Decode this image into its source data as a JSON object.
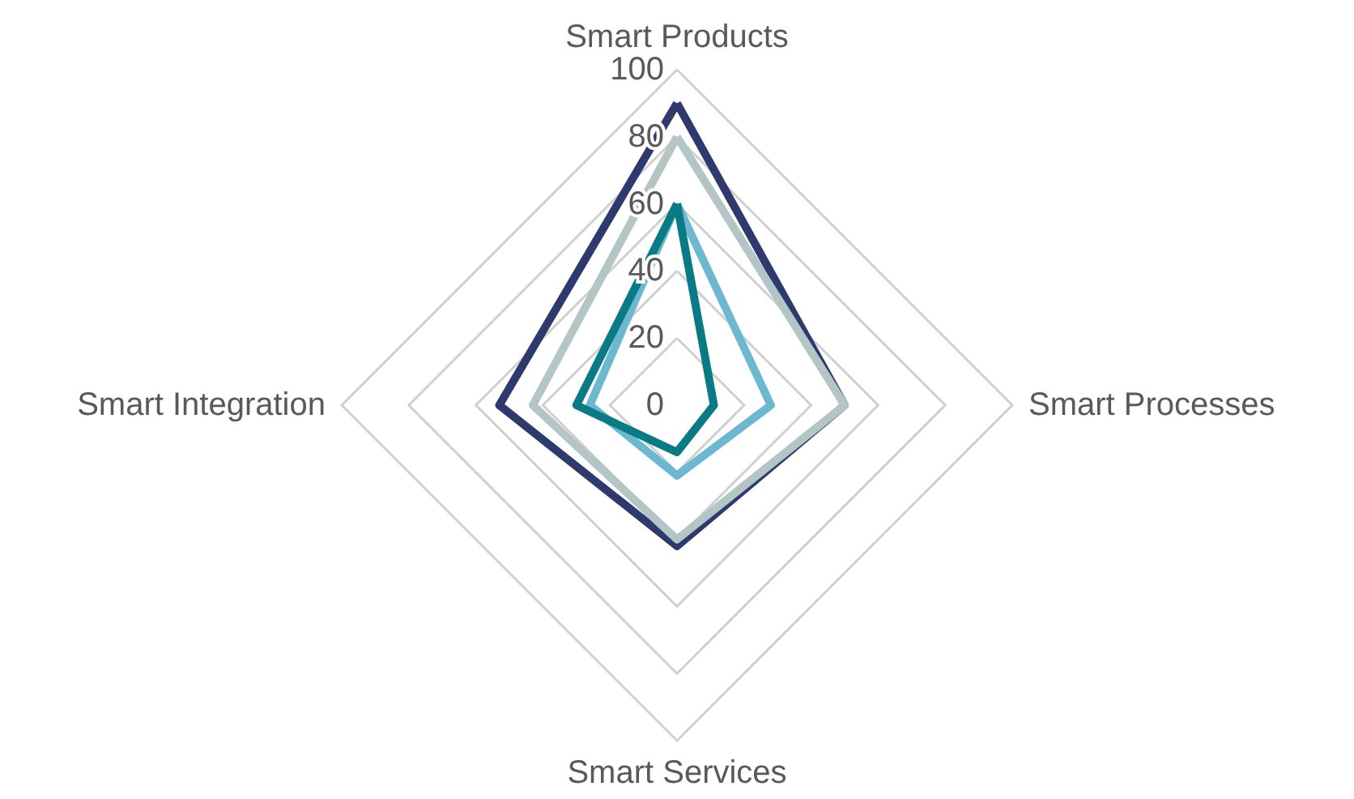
{
  "chart_data": {
    "type": "radar",
    "categories": [
      "Smart Products",
      "Smart Processes",
      "Smart Services",
      "Smart Integration"
    ],
    "ylim": [
      0,
      100
    ],
    "yticks": [
      0,
      20,
      40,
      60,
      80,
      100
    ],
    "grid": true,
    "marker": "none",
    "series": [
      {
        "color": "#2e3a6e",
        "values": [
          90,
          50,
          42,
          53
        ]
      },
      {
        "color": "#b4c5c6",
        "values": [
          80,
          50,
          40,
          43
        ]
      },
      {
        "color": "#6cb8d0",
        "values": [
          60,
          28,
          21,
          26
        ]
      },
      {
        "color": "#0a7a84",
        "values": [
          60,
          11,
          14,
          30
        ]
      }
    ]
  }
}
